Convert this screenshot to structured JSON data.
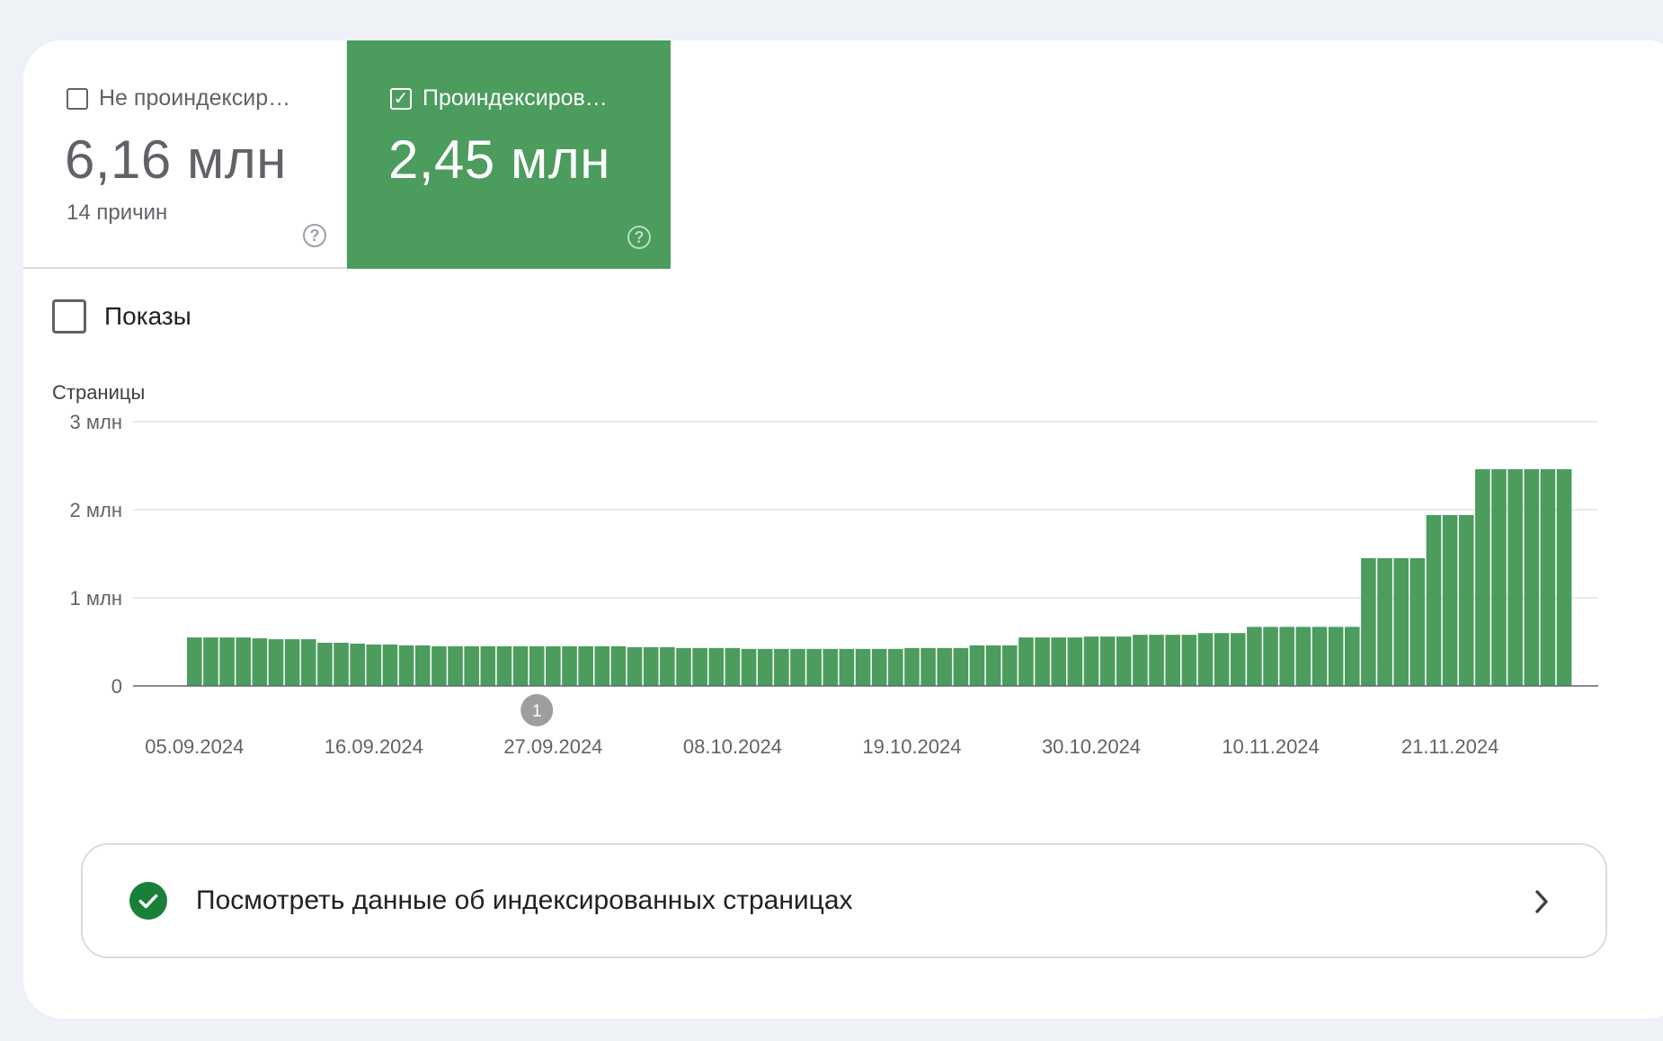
{
  "metrics": {
    "not_indexed": {
      "label": "Не проиндексир…",
      "value": "6,16 млн",
      "sub": "14 причин",
      "checked": false
    },
    "indexed": {
      "label": "Проиндексиров…",
      "value": "2,45 млн",
      "checked": true
    }
  },
  "impressions": {
    "label": "Показы",
    "checked": false
  },
  "link": {
    "text": "Посмотреть данные об индексированных страницах"
  },
  "colors": {
    "bar": "#4c9c5e",
    "success": "#188038"
  },
  "icons": {
    "help": "help-circle-icon",
    "check": "check-circle-icon",
    "chevron": "chevron-right-icon"
  },
  "chart_data": {
    "type": "bar",
    "ylabel": "Страницы",
    "ylim": [
      0,
      3000000
    ],
    "yticks": [
      {
        "value": 0,
        "label": "0"
      },
      {
        "value": 1000000,
        "label": "1 млн"
      },
      {
        "value": 2000000,
        "label": "2 млн"
      },
      {
        "value": 3000000,
        "label": "3 млн"
      }
    ],
    "xtick_labels": [
      "05.09.2024",
      "16.09.2024",
      "27.09.2024",
      "08.10.2024",
      "19.10.2024",
      "30.10.2024",
      "10.11.2024",
      "21.11.2024"
    ],
    "annotation": {
      "label": "1",
      "date": "26.09.2024"
    },
    "series": [
      {
        "values": [
          550000,
          550000,
          550000,
          550000,
          540000,
          530000,
          530000,
          530000,
          490000,
          490000,
          480000,
          470000,
          470000,
          460000,
          460000,
          450000,
          450000,
          450000,
          450000,
          450000,
          450000,
          450000,
          450000,
          450000,
          450000,
          450000,
          450000,
          440000,
          440000,
          440000,
          430000,
          430000,
          430000,
          430000,
          420000,
          420000,
          420000,
          420000,
          420000,
          420000,
          420000,
          420000,
          420000,
          420000,
          430000,
          430000,
          430000,
          430000,
          460000,
          460000,
          460000,
          550000,
          550000,
          550000,
          550000,
          560000,
          560000,
          560000,
          580000,
          580000,
          580000,
          580000,
          600000,
          600000,
          600000,
          670000,
          670000,
          670000,
          670000,
          670000,
          670000,
          670000,
          1450000,
          1450000,
          1450000,
          1450000,
          1940000,
          1940000,
          1940000,
          2460000,
          2460000,
          2460000,
          2460000,
          2460000,
          2460000
        ]
      }
    ]
  }
}
